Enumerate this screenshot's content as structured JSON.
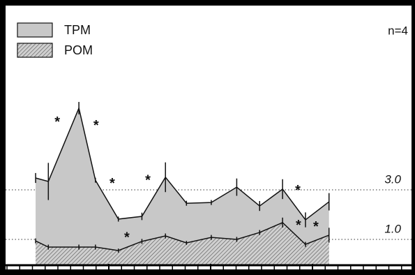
{
  "chart_data": {
    "type": "area",
    "annotations": [
      {
        "text": "n=4"
      },
      {
        "text": "*",
        "x": 3.95,
        "y": 5.82
      },
      {
        "text": "*",
        "x": 7.0,
        "y": 5.68
      },
      {
        "text": "*",
        "x": 8.27,
        "y": 3.34
      },
      {
        "text": "*",
        "x": 11.07,
        "y": 3.48
      },
      {
        "text": "*",
        "x": 9.42,
        "y": 1.17
      },
      {
        "text": "*",
        "x": 22.85,
        "y": 3.06
      },
      {
        "text": "*",
        "x": 22.9,
        "y": 1.65
      },
      {
        "text": "*",
        "x": 24.27,
        "y": 1.6
      }
    ],
    "x": [
      2.25,
      3.25,
      5.65,
      6.95,
      8.75,
      10.6,
      12.45,
      14.1,
      16.05,
      18.05,
      19.85,
      21.65,
      23.45,
      25.3
    ],
    "series": [
      {
        "name": "TPM",
        "color": "#c8c8c8",
        "hatch": false,
        "values": [
          3.48,
          3.34,
          6.3,
          3.39,
          1.82,
          1.93,
          3.51,
          2.46,
          2.49,
          3.11,
          2.35,
          3.03,
          1.79,
          2.52
        ],
        "errors": [
          0.2,
          0.75,
          0.25,
          0.1,
          0.1,
          0.15,
          0.6,
          0.1,
          0.1,
          0.35,
          0.2,
          0.4,
          0.3,
          0.35
        ]
      },
      {
        "name": "POM",
        "color": "#a8a8a8",
        "hatch": true,
        "values": [
          0.94,
          0.69,
          0.69,
          0.69,
          0.55,
          0.92,
          1.14,
          0.86,
          1.08,
          1.0,
          1.28,
          1.68,
          0.8,
          1.17
        ],
        "errors": [
          0.1,
          0.1,
          0.1,
          0.1,
          0.08,
          0.1,
          0.1,
          0.08,
          0.1,
          0.1,
          0.1,
          0.2,
          0.1,
          0.3
        ]
      }
    ],
    "xlim": [
      0,
      32
    ],
    "xticks": [
      0,
      1,
      2,
      3,
      4,
      5,
      6,
      7,
      8,
      9,
      10,
      11,
      12,
      13,
      14,
      15,
      16,
      17,
      18,
      19,
      20,
      21,
      22,
      23,
      24,
      25,
      26,
      27,
      28,
      29,
      30,
      31,
      32
    ],
    "xticks_major": [
      8,
      16,
      24
    ],
    "ylim": [
      0,
      10.44
    ],
    "yticks": [
      {
        "value": 1,
        "label": "1.0"
      },
      {
        "value": 3,
        "label": "3.0"
      }
    ],
    "grid": "dotted",
    "legend": "upper left"
  }
}
